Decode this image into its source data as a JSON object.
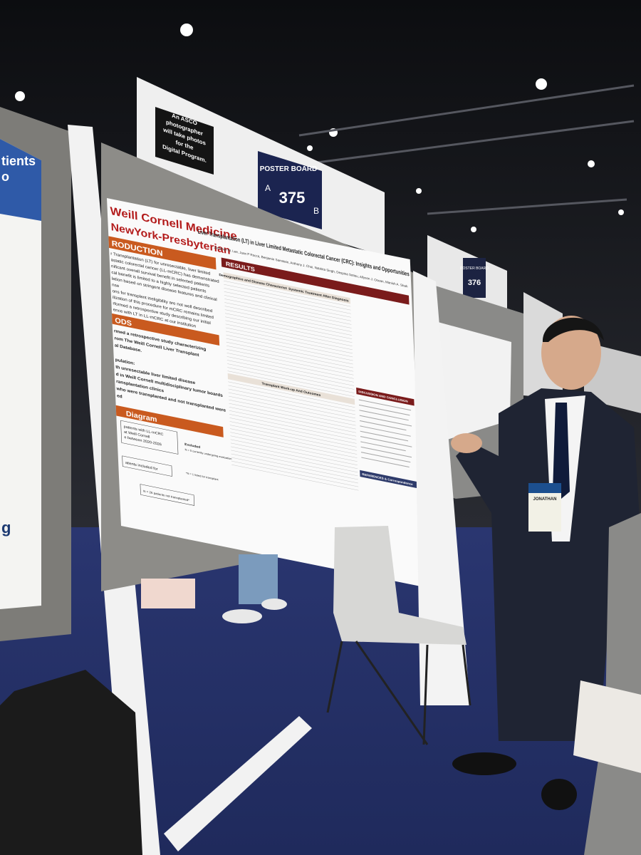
{
  "signs": {
    "photographer": [
      "An ASCO",
      "photographer",
      "will take photos",
      "for the",
      "Digital Program."
    ],
    "board_label": "POSTER BOARD",
    "side_a": "A",
    "number": "375",
    "side_b": "B",
    "next_board_label": "POSTER BOARD",
    "next_board_number": "376"
  },
  "poster": {
    "institution_1": "Weill Cornell Medicine",
    "institution_2": "NewYork-Presbyterian",
    "title": "Liver Transplantation (LT) in Liver Limited Metastatic Colorectal Cancer (CRC): Insights and Opportunities",
    "authors": "Jonathan W. Lee, Juan P Rocca, Benjamin Samstein, Anthony J. Choi, Nobhita Singh, Despina Sotiou, Allyson J. Ocean, Manish A. Shah",
    "intro_heading": "RODUCTION",
    "intro_lines": [
      "r Transplantation (LT) for unresectable, liver limited",
      "astatic colorectal cancer (LL-mCRC) has demonstrated",
      "nificant overall survival benefit in selected patients",
      "cal benefit is limited to a highly selected patients",
      "lation based on stringent disease features and clinical",
      "nse",
      "ons for transplant ineligibility are not well described",
      "ilization of this procedure for mCRC remains limited",
      "rformed a retrospective study describing our initial",
      "ence with LT in LL-mCRC at our institution"
    ],
    "methods_heading": "ODS",
    "methods_lines": [
      "rmed a retrospective study characterizing",
      "rom The Weill Cornell Liver Transplant",
      "al Database.",
      "",
      "pulation:",
      "th unresectable liver limited disease",
      "d in Weill Cornell multidisciplinary tumor boards",
      "ransplantation clinics",
      "who were transplanted and not transplanted were",
      "ed"
    ],
    "diagram_heading": "Diagram",
    "diagram_lines": [
      "patients with LL-mCRC",
      "at Weill Cornell",
      "e between 2020-2026"
    ],
    "diagram_included": "atients included for",
    "diagram_excluded": "Excluded",
    "diagram_evaluation": "N = 5 currently undergoing evaluation",
    "diagram_listed": "*N = 1 listed for transplant",
    "diagram_not_transplanted": "N = 26 patients not transplanted*",
    "results_heading": "RESULTS",
    "results_tables": [
      "Demographics and Disease Characteristics",
      "Systemic Treatment After Diagnosis",
      "Transplant Work-up And Outcomes"
    ],
    "discussion_heading": "DISCUSSION AND CONCLUSION",
    "references_heading": "REFERENCES & Correspondence"
  },
  "left_poster": {
    "lines": [
      "tients",
      "o"
    ],
    "footer": "g"
  },
  "badge": {
    "name": "JONATHAN"
  }
}
